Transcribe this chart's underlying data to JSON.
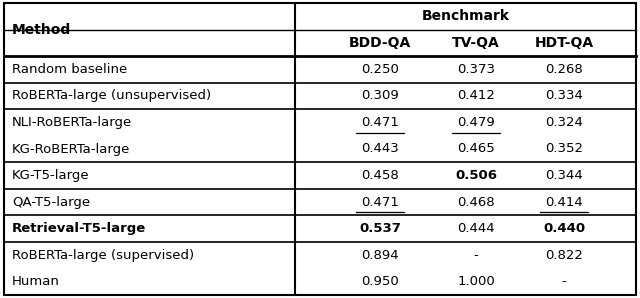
{
  "group_header": "Benchmark",
  "col_headers": [
    "BDD-QA",
    "TV-QA",
    "HDT-QA"
  ],
  "rows": [
    {
      "method": "Random baseline",
      "bdd": "0.250",
      "tv": "0.373",
      "hdt": "0.268",
      "bold_bdd": false,
      "bold_tv": false,
      "bold_hdt": false,
      "underline_bdd": false,
      "underline_tv": false,
      "underline_hdt": false,
      "bold_method": false
    },
    {
      "method": "RoBERTa-large (unsupervised)",
      "bdd": "0.309",
      "tv": "0.412",
      "hdt": "0.334",
      "bold_bdd": false,
      "bold_tv": false,
      "bold_hdt": false,
      "underline_bdd": false,
      "underline_tv": false,
      "underline_hdt": false,
      "bold_method": false
    },
    {
      "method": "NLI-RoBERTa-large",
      "bdd": "0.471",
      "tv": "0.479",
      "hdt": "0.324",
      "bold_bdd": false,
      "bold_tv": false,
      "bold_hdt": false,
      "underline_bdd": true,
      "underline_tv": true,
      "underline_hdt": false,
      "bold_method": false
    },
    {
      "method": "KG-RoBERTa-large",
      "bdd": "0.443",
      "tv": "0.465",
      "hdt": "0.352",
      "bold_bdd": false,
      "bold_tv": false,
      "bold_hdt": false,
      "underline_bdd": false,
      "underline_tv": false,
      "underline_hdt": false,
      "bold_method": false
    },
    {
      "method": "KG-T5-large",
      "bdd": "0.458",
      "tv": "0.506",
      "hdt": "0.344",
      "bold_bdd": false,
      "bold_tv": true,
      "bold_hdt": false,
      "underline_bdd": false,
      "underline_tv": false,
      "underline_hdt": false,
      "bold_method": false
    },
    {
      "method": "QA-T5-large",
      "bdd": "0.471",
      "tv": "0.468",
      "hdt": "0.414",
      "bold_bdd": false,
      "bold_tv": false,
      "bold_hdt": false,
      "underline_bdd": true,
      "underline_tv": false,
      "underline_hdt": true,
      "bold_method": false
    },
    {
      "method": "Retrieval-T5-large",
      "bdd": "0.537",
      "tv": "0.444",
      "hdt": "0.440",
      "bold_bdd": true,
      "bold_tv": false,
      "bold_hdt": true,
      "underline_bdd": false,
      "underline_tv": false,
      "underline_hdt": false,
      "bold_method": true
    },
    {
      "method": "RoBERTa-large (supervised)",
      "bdd": "0.894",
      "tv": "-",
      "hdt": "0.822",
      "bold_bdd": false,
      "bold_tv": false,
      "bold_hdt": false,
      "underline_bdd": false,
      "underline_tv": false,
      "underline_hdt": false,
      "bold_method": false
    },
    {
      "method": "Human",
      "bdd": "0.950",
      "tv": "1.000",
      "hdt": "-",
      "bold_bdd": false,
      "bold_tv": false,
      "bold_hdt": false,
      "underline_bdd": false,
      "underline_tv": false,
      "underline_hdt": false,
      "bold_method": false
    }
  ],
  "hlines_after_data_row": [
    1,
    2,
    4,
    5,
    6,
    7
  ],
  "bg_color": "#ffffff",
  "text_color": "#000000",
  "font_size": 9.5,
  "header_font_size": 10.0
}
